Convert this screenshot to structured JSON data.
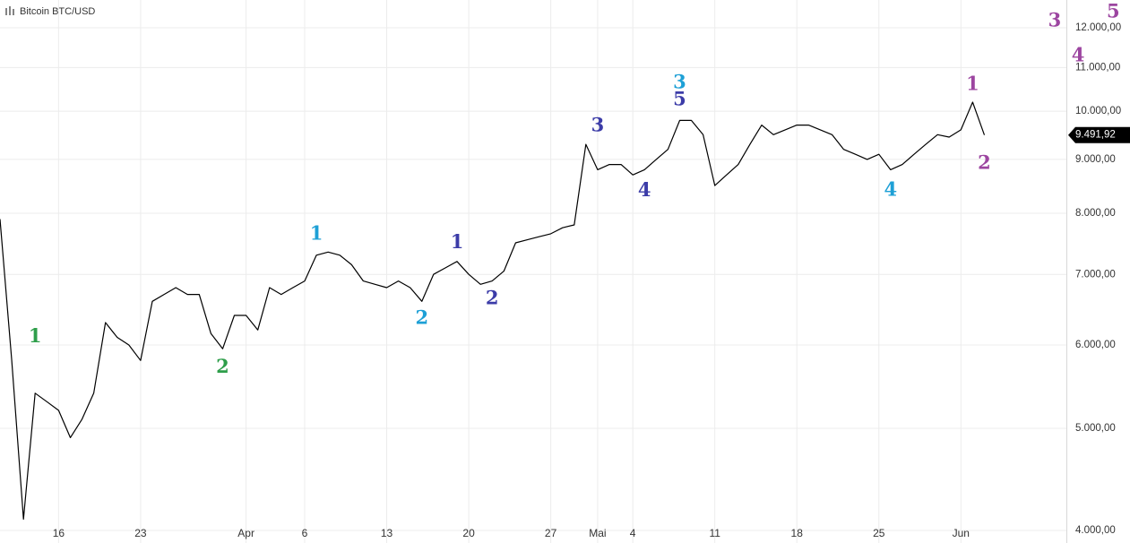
{
  "chart_data": {
    "type": "line",
    "title": "Bitcoin BTC/USD",
    "color": "#000000",
    "log_scale": true,
    "grid": true,
    "x": [
      "03-11",
      "03-12",
      "03-13",
      "03-14",
      "03-15",
      "03-16",
      "03-17",
      "03-18",
      "03-19",
      "03-20",
      "03-21",
      "03-22",
      "03-23",
      "03-24",
      "03-25",
      "03-26",
      "03-27",
      "03-28",
      "03-29",
      "03-30",
      "03-31",
      "04-01",
      "04-02",
      "04-03",
      "04-04",
      "04-05",
      "04-06",
      "04-07",
      "04-08",
      "04-09",
      "04-10",
      "04-11",
      "04-12",
      "04-13",
      "04-14",
      "04-15",
      "04-16",
      "04-17",
      "04-18",
      "04-19",
      "04-20",
      "04-21",
      "04-22",
      "04-23",
      "04-24",
      "04-25",
      "04-26",
      "04-27",
      "04-28",
      "04-29",
      "04-30",
      "05-01",
      "05-02",
      "05-03",
      "05-04",
      "05-05",
      "05-06",
      "05-07",
      "05-08",
      "05-09",
      "05-10",
      "05-11",
      "05-12",
      "05-13",
      "05-14",
      "05-15",
      "05-16",
      "05-17",
      "05-18",
      "05-19",
      "05-20",
      "05-21",
      "05-22",
      "05-23",
      "05-24",
      "05-25",
      "05-26",
      "05-27",
      "05-28",
      "05-29",
      "05-30",
      "05-31",
      "06-01",
      "06-02",
      "06-03"
    ],
    "values": [
      7900,
      5800,
      4100,
      5400,
      5300,
      5200,
      4900,
      5100,
      5400,
      6300,
      6100,
      6000,
      5800,
      6600,
      6700,
      6800,
      6700,
      6700,
      6150,
      5950,
      6400,
      6400,
      6200,
      6800,
      6700,
      6800,
      6900,
      7300,
      7350,
      7300,
      7150,
      6900,
      6850,
      6800,
      6900,
      6800,
      6600,
      7000,
      7100,
      7200,
      7000,
      6850,
      6900,
      7050,
      7500,
      7550,
      7600,
      7650,
      7750,
      7800,
      9300,
      8800,
      8900,
      8900,
      8700,
      8800,
      9000,
      9200,
      9800,
      9800,
      9500,
      8500,
      8700,
      8900,
      9300,
      9700,
      9500,
      9600,
      9700,
      9700,
      9600,
      9500,
      9200,
      9100,
      9000,
      9100,
      8800,
      8900,
      9100,
      9300,
      9500,
      9450,
      9600,
      10200,
      9491.92
    ],
    "last_price": {
      "value": 9491.92,
      "label": "9.491,92"
    },
    "xlim": [
      "03-11",
      "06-10"
    ],
    "xticks": [
      {
        "value": "03-16",
        "label": "16"
      },
      {
        "value": "03-23",
        "label": "23"
      },
      {
        "value": "04-01",
        "label": "Apr"
      },
      {
        "value": "04-06",
        "label": "6"
      },
      {
        "value": "04-13",
        "label": "13"
      },
      {
        "value": "04-20",
        "label": "20"
      },
      {
        "value": "04-27",
        "label": "27"
      },
      {
        "value": "05-01",
        "label": "Mai"
      },
      {
        "value": "05-04",
        "label": "4"
      },
      {
        "value": "05-11",
        "label": "11"
      },
      {
        "value": "05-18",
        "label": "18"
      },
      {
        "value": "05-25",
        "label": "25"
      },
      {
        "value": "06-01",
        "label": "Jun"
      }
    ],
    "ylim": [
      3892,
      12750
    ],
    "yticks": [
      {
        "value": 4000,
        "label": "4.000,00"
      },
      {
        "value": 5000,
        "label": "5.000,00"
      },
      {
        "value": 6000,
        "label": "6.000,00"
      },
      {
        "value": 7000,
        "label": "7.000,00"
      },
      {
        "value": 8000,
        "label": "8.000,00"
      },
      {
        "value": 9000,
        "label": "9.000,00"
      },
      {
        "value": 10000,
        "label": "10.000,00"
      },
      {
        "value": 11000,
        "label": "11.000,00"
      },
      {
        "value": 12000,
        "label": "12.000,00"
      }
    ],
    "annotations": [
      {
        "text": "1",
        "x": "03-14",
        "y": 6100,
        "color": "#2e9e4a"
      },
      {
        "text": "2",
        "x": "03-30",
        "y": 5710,
        "color": "#2e9e4a"
      },
      {
        "text": "1",
        "x": "04-07",
        "y": 7630,
        "color": "#1ea0d6"
      },
      {
        "text": "2",
        "x": "04-16",
        "y": 6350,
        "color": "#1ea0d6"
      },
      {
        "text": "1",
        "x": "04-19",
        "y": 7490,
        "color": "#3c3ca8"
      },
      {
        "text": "2",
        "x": "04-22",
        "y": 6630,
        "color": "#3c3ca8"
      },
      {
        "text": "3",
        "x": "05-01",
        "y": 9670,
        "color": "#3c3ca8"
      },
      {
        "text": "4",
        "x": "05-05",
        "y": 8390,
        "color": "#3c3ca8"
      },
      {
        "text": "3",
        "x": "05-08",
        "y": 10630,
        "color": "#1ea0d6"
      },
      {
        "text": "5",
        "x": "05-08",
        "y": 10240,
        "color": "#3c3ca8"
      },
      {
        "text": "4",
        "x": "05-26",
        "y": 8400,
        "color": "#1ea0d6"
      },
      {
        "text": "1",
        "x": "06-02",
        "y": 10590,
        "color": "#9c45a0"
      },
      {
        "text": "2",
        "x": "06-03",
        "y": 8910,
        "color": "#9c45a0"
      },
      {
        "text": "3",
        "x": "06-09",
        "y": 12170,
        "color": "#9c45a0"
      },
      {
        "text": "4",
        "x": "06-11",
        "y": 11270,
        "color": "#9c45a0"
      },
      {
        "text": "5",
        "x": "06-14",
        "y": 12410,
        "color": "#9c45a0"
      }
    ]
  }
}
